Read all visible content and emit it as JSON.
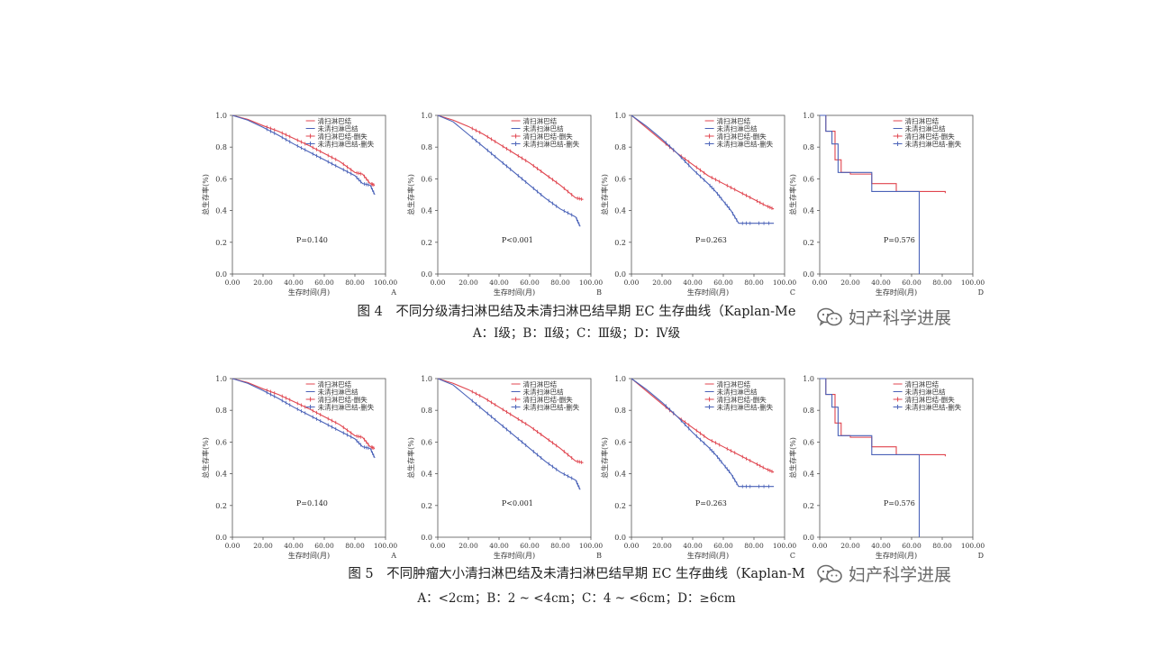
{
  "figures": [
    {
      "caption": "图 4　不同分级清扫淋巴结及未清扫淋巴结早期 EC 生存曲线（Kaplan-Me",
      "subcaption": "A：Ⅰ级；B：Ⅱ级；C：Ⅲ级；D：Ⅳ级"
    },
    {
      "caption": "图 5　不同肿瘤大小清扫淋巴结及未清扫淋巴结早期 EC 生存曲线（Kaplan-M",
      "subcaption": "A：<2cm；B：2 ~ <4cm；C：4 ~ <6cm；D：≥6cm"
    }
  ],
  "watermark": {
    "text": "妇产科学进展",
    "icon": "wechat-icon"
  },
  "colors": {
    "dissected": "#e0454f",
    "not_dissected": "#4a62b8",
    "axis": "#555555"
  },
  "chart_data": [
    {
      "type": "line",
      "panel": "A",
      "figure": 4,
      "xlabel": "生存时间(月)",
      "ylabel": "总生存率(%)",
      "xlim": [
        0,
        100
      ],
      "ylim": [
        0,
        1
      ],
      "xticks": [
        "0.00",
        "20.00",
        "40.00",
        "60.00",
        "80.00",
        "100.00"
      ],
      "yticks": [
        "0.0",
        "0.2",
        "0.4",
        "0.6",
        "0.8",
        "1.0"
      ],
      "legend": [
        "清扫淋巴结",
        "未清扫淋巴结",
        "清扫淋巴结-删失",
        "未清扫淋巴结-删失"
      ],
      "annotation": "P=0.140",
      "series": [
        {
          "name": "清扫淋巴结",
          "x": [
            0,
            10,
            20,
            30,
            40,
            50,
            60,
            70,
            80,
            85,
            90,
            93
          ],
          "y": [
            1.0,
            0.975,
            0.935,
            0.9,
            0.855,
            0.81,
            0.76,
            0.71,
            0.64,
            0.63,
            0.57,
            0.56
          ]
        },
        {
          "name": "未清扫淋巴结",
          "x": [
            0,
            10,
            20,
            30,
            40,
            50,
            60,
            70,
            80,
            85,
            90,
            93
          ],
          "y": [
            1.0,
            0.97,
            0.925,
            0.875,
            0.82,
            0.77,
            0.72,
            0.67,
            0.62,
            0.57,
            0.56,
            0.5
          ]
        }
      ]
    },
    {
      "type": "line",
      "panel": "B",
      "figure": 4,
      "xlabel": "生存时间(月)",
      "ylabel": "总生存率(%)",
      "xlim": [
        0,
        100
      ],
      "ylim": [
        0,
        1
      ],
      "xticks": [
        "0.00",
        "20.00",
        "40.00",
        "60.00",
        "80.00",
        "100.00"
      ],
      "yticks": [
        "0.0",
        "0.2",
        "0.4",
        "0.6",
        "0.8",
        "1.0"
      ],
      "legend": [
        "清扫淋巴结",
        "未清扫淋巴结",
        "清扫淋巴结-删失",
        "未清扫淋巴结-删失"
      ],
      "annotation": "P<0.001",
      "series": [
        {
          "name": "清扫淋巴结",
          "x": [
            0,
            10,
            20,
            30,
            40,
            50,
            60,
            70,
            80,
            90,
            95
          ],
          "y": [
            1.0,
            0.97,
            0.93,
            0.88,
            0.82,
            0.76,
            0.7,
            0.63,
            0.56,
            0.48,
            0.47
          ]
        },
        {
          "name": "未清扫淋巴结",
          "x": [
            0,
            10,
            20,
            30,
            40,
            50,
            60,
            70,
            80,
            90,
            93
          ],
          "y": [
            1.0,
            0.96,
            0.88,
            0.8,
            0.72,
            0.64,
            0.56,
            0.48,
            0.41,
            0.36,
            0.3
          ]
        }
      ]
    },
    {
      "type": "line",
      "panel": "C",
      "figure": 4,
      "xlabel": "生存时间(月)",
      "ylabel": "总生存率(%)",
      "xlim": [
        0,
        100
      ],
      "ylim": [
        0,
        1
      ],
      "xticks": [
        "0.00",
        "20.00",
        "40.00",
        "60.00",
        "80.00",
        "100.00"
      ],
      "yticks": [
        "0.0",
        "0.2",
        "0.4",
        "0.6",
        "0.8",
        "1.0"
      ],
      "legend": [
        "清扫淋巴结",
        "未清扫淋巴结",
        "清扫淋巴结-删失",
        "未清扫淋巴结-删失"
      ],
      "annotation": "P=0.263",
      "series": [
        {
          "name": "清扫淋巴结",
          "x": [
            0,
            10,
            20,
            30,
            40,
            50,
            60,
            70,
            80,
            88,
            93
          ],
          "y": [
            1.0,
            0.92,
            0.84,
            0.76,
            0.69,
            0.62,
            0.57,
            0.52,
            0.47,
            0.43,
            0.41
          ]
        },
        {
          "name": "未清扫淋巴结",
          "x": [
            0,
            10,
            20,
            30,
            40,
            50,
            55,
            60,
            65,
            70,
            80,
            93
          ],
          "y": [
            1.0,
            0.93,
            0.85,
            0.76,
            0.66,
            0.57,
            0.52,
            0.46,
            0.4,
            0.32,
            0.32,
            0.32
          ]
        }
      ]
    },
    {
      "type": "line",
      "panel": "D",
      "figure": 4,
      "xlabel": "生存时间(月)",
      "ylabel": "总生存率(%)",
      "xlim": [
        0,
        100
      ],
      "ylim": [
        0,
        1
      ],
      "xticks": [
        "0.00",
        "20.00",
        "40.00",
        "60.00",
        "80.00",
        "100.00"
      ],
      "yticks": [
        "0.0",
        "0.2",
        "0.4",
        "0.6",
        "0.8",
        "1.0"
      ],
      "legend": [
        "清扫淋巴结",
        "未清扫淋巴结",
        "清扫淋巴结-删失",
        "未清扫淋巴结-删失"
      ],
      "annotation": "P=0.576",
      "series": [
        {
          "name": "清扫淋巴结",
          "step": true,
          "x": [
            0,
            4,
            10,
            14,
            20,
            34,
            50,
            82
          ],
          "y": [
            1.0,
            0.9,
            0.72,
            0.64,
            0.63,
            0.57,
            0.52,
            0.51
          ]
        },
        {
          "name": "未清扫淋巴结",
          "step": true,
          "x": [
            0,
            4,
            8,
            12,
            34,
            65,
            65
          ],
          "y": [
            1.0,
            0.9,
            0.82,
            0.64,
            0.52,
            0.52,
            0.0
          ]
        }
      ]
    },
    {
      "type": "line",
      "panel": "A",
      "figure": 5,
      "xlabel": "生存时间(月)",
      "ylabel": "总生存率(%)",
      "xlim": [
        0,
        100
      ],
      "ylim": [
        0,
        1
      ],
      "xticks": [
        "0.00",
        "20.00",
        "40.00",
        "60.00",
        "80.00",
        "100.00"
      ],
      "yticks": [
        "0.0",
        "0.2",
        "0.4",
        "0.6",
        "0.8",
        "1.0"
      ],
      "legend": [
        "清扫淋巴结",
        "未清扫淋巴结",
        "清扫淋巴结-删失",
        "未清扫淋巴结-删失"
      ],
      "annotation": "P=0.140",
      "series": [
        {
          "name": "清扫淋巴结",
          "x": [
            0,
            10,
            20,
            30,
            40,
            50,
            60,
            70,
            80,
            85,
            90,
            93
          ],
          "y": [
            1.0,
            0.975,
            0.935,
            0.9,
            0.855,
            0.81,
            0.76,
            0.71,
            0.64,
            0.63,
            0.57,
            0.56
          ]
        },
        {
          "name": "未清扫淋巴结",
          "x": [
            0,
            10,
            20,
            30,
            40,
            50,
            60,
            70,
            80,
            85,
            90,
            93
          ],
          "y": [
            1.0,
            0.97,
            0.925,
            0.875,
            0.82,
            0.77,
            0.72,
            0.67,
            0.62,
            0.57,
            0.56,
            0.5
          ]
        }
      ]
    },
    {
      "type": "line",
      "panel": "B",
      "figure": 5,
      "xlabel": "生存时间(月)",
      "ylabel": "总生存率(%)",
      "xlim": [
        0,
        100
      ],
      "ylim": [
        0,
        1
      ],
      "xticks": [
        "0.00",
        "20.00",
        "40.00",
        "60.00",
        "80.00",
        "100.00"
      ],
      "yticks": [
        "0.0",
        "0.2",
        "0.4",
        "0.6",
        "0.8",
        "1.0"
      ],
      "legend": [
        "清扫淋巴结",
        "未清扫淋巴结",
        "清扫淋巴结-删失",
        "未清扫淋巴结-删失"
      ],
      "annotation": "P<0.001",
      "series": [
        {
          "name": "清扫淋巴结",
          "x": [
            0,
            10,
            20,
            30,
            40,
            50,
            60,
            70,
            80,
            90,
            95
          ],
          "y": [
            1.0,
            0.97,
            0.93,
            0.88,
            0.82,
            0.76,
            0.7,
            0.63,
            0.56,
            0.48,
            0.47
          ]
        },
        {
          "name": "未清扫淋巴结",
          "x": [
            0,
            10,
            20,
            30,
            40,
            50,
            60,
            70,
            80,
            90,
            93
          ],
          "y": [
            1.0,
            0.96,
            0.88,
            0.8,
            0.72,
            0.64,
            0.56,
            0.48,
            0.41,
            0.36,
            0.3
          ]
        }
      ]
    },
    {
      "type": "line",
      "panel": "C",
      "figure": 5,
      "xlabel": "生存时间(月)",
      "ylabel": "总生存率(%)",
      "xlim": [
        0,
        100
      ],
      "ylim": [
        0,
        1
      ],
      "xticks": [
        "0.00",
        "20.00",
        "40.00",
        "60.00",
        "80.00",
        "100.00"
      ],
      "yticks": [
        "0.0",
        "0.2",
        "0.4",
        "0.6",
        "0.8",
        "1.0"
      ],
      "legend": [
        "清扫淋巴结",
        "未清扫淋巴结",
        "清扫淋巴结-删失",
        "未清扫淋巴结-删失"
      ],
      "annotation": "P=0.263",
      "series": [
        {
          "name": "清扫淋巴结",
          "x": [
            0,
            10,
            20,
            30,
            40,
            50,
            60,
            70,
            80,
            88,
            93
          ],
          "y": [
            1.0,
            0.92,
            0.84,
            0.76,
            0.69,
            0.62,
            0.57,
            0.52,
            0.47,
            0.43,
            0.41
          ]
        },
        {
          "name": "未清扫淋巴结",
          "x": [
            0,
            10,
            20,
            30,
            40,
            50,
            55,
            60,
            65,
            70,
            80,
            93
          ],
          "y": [
            1.0,
            0.93,
            0.85,
            0.76,
            0.66,
            0.57,
            0.52,
            0.46,
            0.4,
            0.32,
            0.32,
            0.32
          ]
        }
      ]
    },
    {
      "type": "line",
      "panel": "D",
      "figure": 5,
      "xlabel": "生存时间(月)",
      "ylabel": "总生存率(%)",
      "xlim": [
        0,
        100
      ],
      "ylim": [
        0,
        1
      ],
      "xticks": [
        "0.00",
        "20.00",
        "40.00",
        "60.00",
        "80.00",
        "100.00"
      ],
      "yticks": [
        "0.0",
        "0.2",
        "0.4",
        "0.6",
        "0.8",
        "1.0"
      ],
      "legend": [
        "清扫淋巴结",
        "未清扫淋巴结",
        "清扫淋巴结-删失",
        "未清扫淋巴结-删失"
      ],
      "annotation": "P=0.576",
      "series": [
        {
          "name": "清扫淋巴结",
          "step": true,
          "x": [
            0,
            4,
            10,
            14,
            20,
            34,
            50,
            82
          ],
          "y": [
            1.0,
            0.9,
            0.72,
            0.64,
            0.63,
            0.57,
            0.52,
            0.51
          ]
        },
        {
          "name": "未清扫淋巴结",
          "step": true,
          "x": [
            0,
            4,
            8,
            12,
            34,
            65,
            65
          ],
          "y": [
            1.0,
            0.9,
            0.82,
            0.64,
            0.52,
            0.52,
            0.0
          ]
        }
      ]
    }
  ]
}
